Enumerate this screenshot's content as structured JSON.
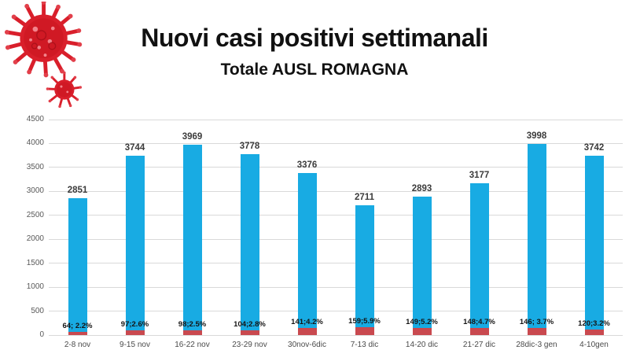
{
  "header": {
    "title": "Nuovi casi positivi settimanali",
    "subtitle": "Totale AUSL ROMAGNA"
  },
  "icons": {
    "virus_large": "coronavirus-icon-large",
    "virus_small": "coronavirus-icon-small"
  },
  "colors": {
    "bar_blue": "#18abe3",
    "bar_red": "#c9494f",
    "gridline": "#d9d9d9",
    "axis_text": "#595959",
    "category_text": "#4a4a4a",
    "value_label_text": "#3b3b3b",
    "red_label_text": "#141414",
    "title_text": "#111111",
    "virus_red": "#d91f2b"
  },
  "chart_data": {
    "type": "bar",
    "stacked": true,
    "title": "Nuovi casi positivi settimanali",
    "subtitle": "Totale AUSL ROMAGNA",
    "categories": [
      "2-8 nov",
      "9-15 nov",
      "16-22 nov",
      "23-29 nov",
      "30nov-6dic",
      "7-13 dic",
      "14-20 dic",
      "21-27 dic",
      "28dic-3 gen",
      "4-10gen"
    ],
    "totals": [
      2851,
      3744,
      3969,
      3778,
      3376,
      2711,
      2893,
      3177,
      3998,
      3742
    ],
    "total_labels": [
      "2851",
      "3744",
      "3969",
      "3778",
      "3376",
      "2711",
      "2893",
      "3177",
      "3998",
      "3742"
    ],
    "series": [
      {
        "name": "red-bottom-segment",
        "color": "#c9494f",
        "values": [
          64,
          97,
          98,
          104,
          141,
          159,
          149,
          148,
          146,
          120
        ],
        "labels": [
          "64; 2.2%",
          "97;2.6%",
          "98;2.5%",
          "104;2.8%",
          "141;4.2%",
          "159;5.9%",
          "149;5.2%",
          "148;4.7%",
          "146; 3.7%",
          "120;3.2%"
        ]
      },
      {
        "name": "blue-top-segment",
        "color": "#18abe3",
        "values": [
          2787,
          3647,
          3871,
          3674,
          3235,
          2552,
          2744,
          3029,
          3852,
          3622
        ]
      }
    ],
    "y_ticks": [
      0,
      500,
      1000,
      1500,
      2000,
      2500,
      3000,
      3500,
      4000,
      4500
    ],
    "ylim": [
      0,
      4500
    ],
    "grid": true,
    "legend": false
  }
}
